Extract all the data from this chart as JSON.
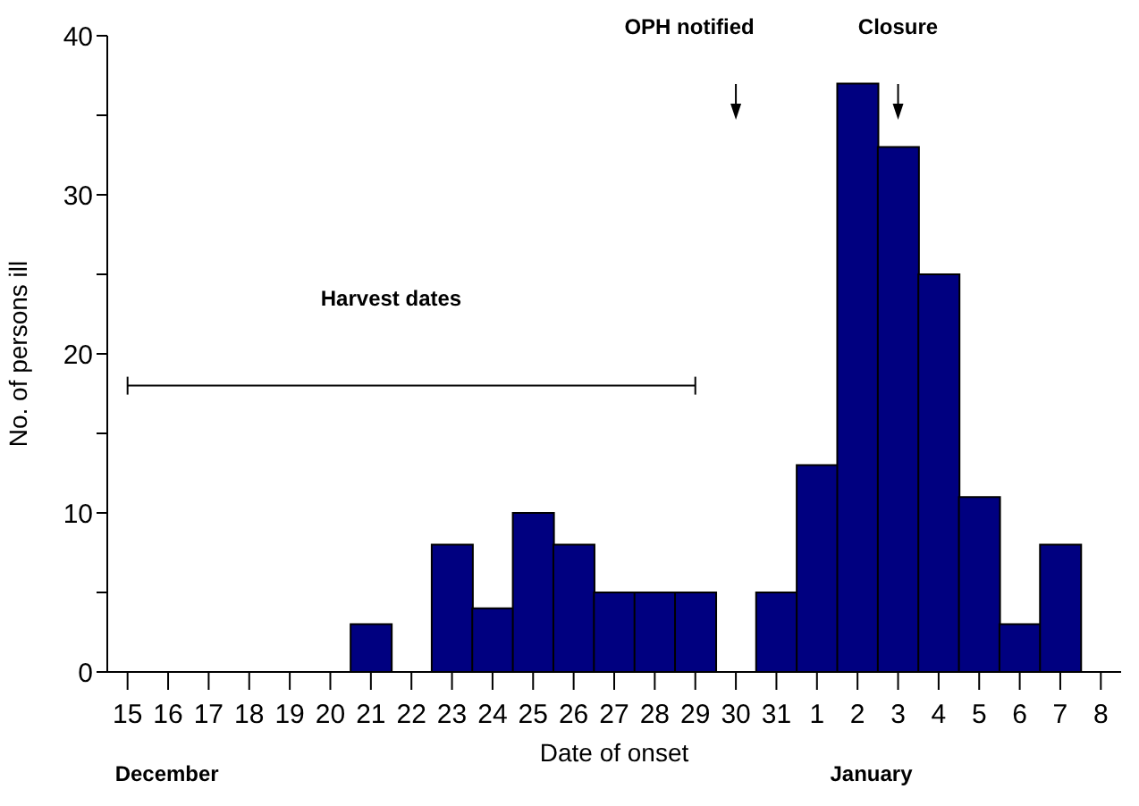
{
  "chart_data": {
    "type": "bar",
    "xlabel": "Date of onset",
    "ylabel": "No. of persons ill",
    "categories": [
      "15",
      "16",
      "17",
      "18",
      "19",
      "20",
      "21",
      "22",
      "23",
      "24",
      "25",
      "26",
      "27",
      "28",
      "29",
      "30",
      "31",
      "1",
      "2",
      "3",
      "4",
      "5",
      "6",
      "7",
      "8"
    ],
    "series": [
      {
        "color": "#000080",
        "values": [
          0,
          0,
          0,
          0,
          0,
          0,
          3,
          0,
          8,
          4,
          10,
          8,
          5,
          5,
          5,
          0,
          5,
          13,
          37,
          33,
          25,
          11,
          3,
          8,
          0
        ]
      },
      {
        "type": "line",
        "name": "Harvest dates",
        "color": "#000000",
        "x": [
          "15",
          "29"
        ],
        "values": [
          18,
          18
        ]
      }
    ],
    "ylim": [
      0,
      40
    ],
    "yticks": [
      0,
      {
        "value": 5,
        "label": null
      },
      10,
      {
        "value": 15,
        "label": null
      },
      20,
      {
        "value": 25,
        "label": null
      },
      30,
      {
        "value": 35,
        "label": null
      },
      40
    ],
    "annotations": [
      "OPH notified",
      "Closure",
      "December",
      "January"
    ]
  }
}
